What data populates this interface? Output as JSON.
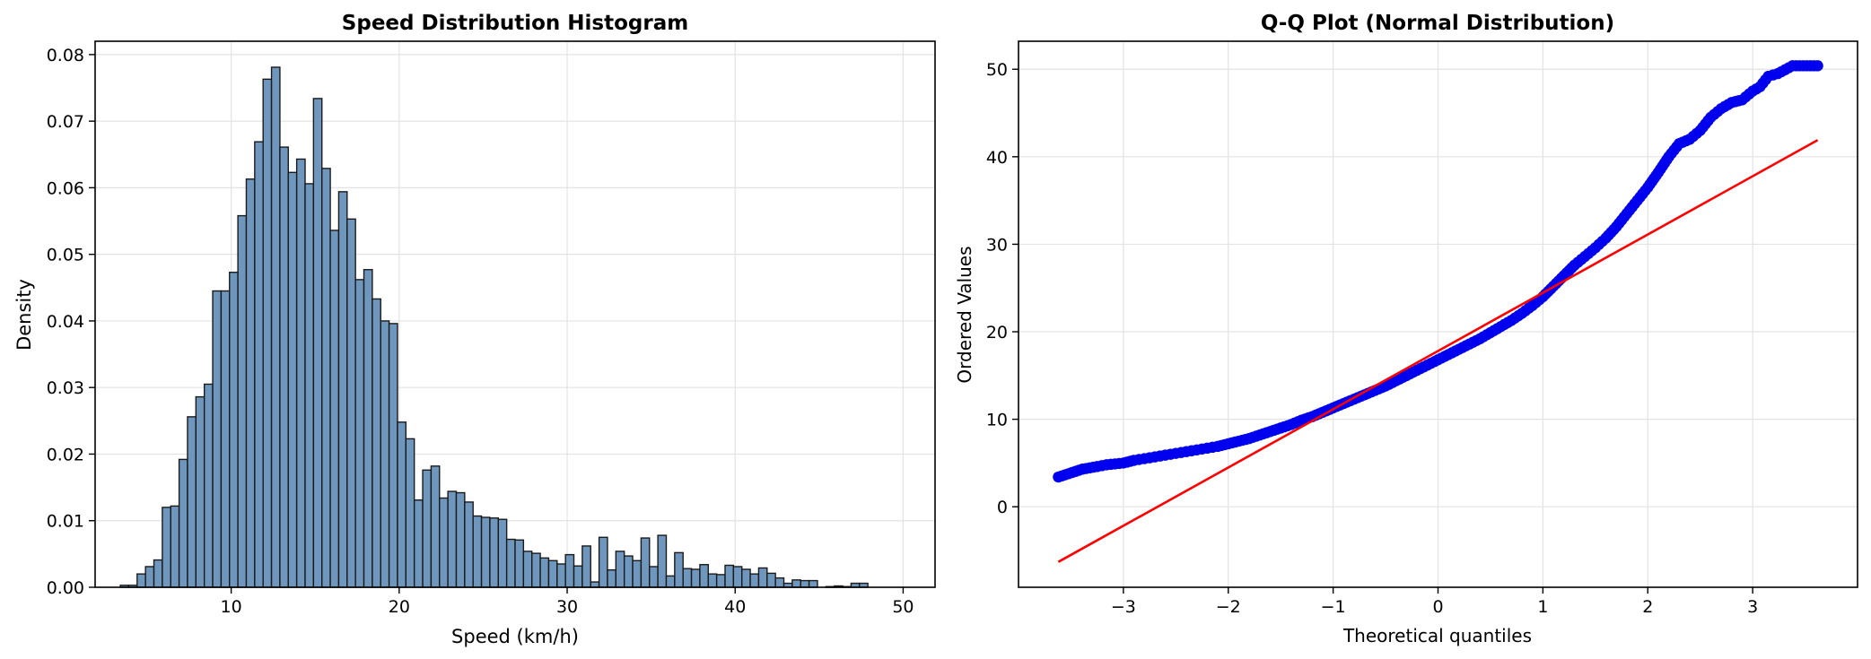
{
  "chart_data": [
    {
      "type": "bar",
      "title": "Speed Distribution Histogram",
      "xlabel": "Speed (km/h)",
      "ylabel": "Density",
      "xlim": [
        1.9,
        51.9
      ],
      "ylim": [
        0,
        0.082
      ],
      "xticks": [
        10,
        20,
        30,
        40,
        50
      ],
      "yticks": [
        0.0,
        0.01,
        0.02,
        0.03,
        0.04,
        0.05,
        0.06,
        0.07,
        0.08
      ],
      "ytick_labels": [
        "0.00",
        "0.01",
        "0.02",
        "0.03",
        "0.04",
        "0.05",
        "0.06",
        "0.07",
        "0.08"
      ],
      "grid": true,
      "bar_color": "#6f97bd",
      "edge_color": "#1a1a1a",
      "bin_start": 3.4,
      "bin_width": 0.5,
      "values": [
        0.0003,
        0.0003,
        0.002,
        0.0031,
        0.0041,
        0.012,
        0.0122,
        0.0192,
        0.0256,
        0.0286,
        0.0305,
        0.0445,
        0.0445,
        0.0473,
        0.0558,
        0.0613,
        0.0669,
        0.0763,
        0.0781,
        0.0661,
        0.0623,
        0.0643,
        0.0606,
        0.0734,
        0.0629,
        0.0536,
        0.0594,
        0.0553,
        0.0462,
        0.0477,
        0.0433,
        0.04,
        0.0396,
        0.0248,
        0.0223,
        0.0131,
        0.0176,
        0.0182,
        0.0134,
        0.0144,
        0.0142,
        0.0128,
        0.0107,
        0.0105,
        0.0104,
        0.0102,
        0.0072,
        0.0071,
        0.0054,
        0.0051,
        0.0044,
        0.004,
        0.0035,
        0.0049,
        0.0032,
        0.0062,
        0.0008,
        0.0075,
        0.0026,
        0.0054,
        0.0047,
        0.004,
        0.0074,
        0.0031,
        0.0078,
        0.0017,
        0.0052,
        0.0028,
        0.0027,
        0.0034,
        0.002,
        0.0019,
        0.0033,
        0.0031,
        0.0027,
        0.002,
        0.0029,
        0.0021,
        0.0014,
        0.0006,
        0.0011,
        0.001,
        0.001,
        0.0,
        0.0001,
        0.0002,
        0.0001,
        0.0006,
        0.0006
      ]
    },
    {
      "type": "scatter",
      "title": "Q-Q Plot (Normal Distribution)",
      "xlabel": "Theoretical quantiles",
      "ylabel": "Ordered Values",
      "xlim": [
        -4.0,
        4.0
      ],
      "ylim": [
        -9.2,
        53.2
      ],
      "xticks": [
        -3,
        -2,
        -1,
        0,
        1,
        2,
        3
      ],
      "xtick_labels": [
        "−3",
        "−2",
        "−1",
        "0",
        "1",
        "2",
        "3"
      ],
      "yticks": [
        0,
        10,
        20,
        30,
        40,
        50
      ],
      "grid": true,
      "point_color": "#0000ee",
      "line_color": "#ff0000",
      "points": [
        [
          -3.62,
          3.4
        ],
        [
          -3.39,
          4.3
        ],
        [
          -3.25,
          4.6
        ],
        [
          -3.16,
          4.8
        ],
        [
          -3.08,
          4.9
        ],
        [
          -3.0,
          5.0
        ],
        [
          -2.9,
          5.3
        ],
        [
          -2.8,
          5.5
        ],
        [
          -2.7,
          5.7
        ],
        [
          -2.6,
          5.9
        ],
        [
          -2.5,
          6.1
        ],
        [
          -2.4,
          6.3
        ],
        [
          -2.3,
          6.5
        ],
        [
          -2.2,
          6.7
        ],
        [
          -2.1,
          6.9
        ],
        [
          -2.0,
          7.2
        ],
        [
          -1.9,
          7.5
        ],
        [
          -1.8,
          7.8
        ],
        [
          -1.7,
          8.2
        ],
        [
          -1.6,
          8.6
        ],
        [
          -1.5,
          9.0
        ],
        [
          -1.4,
          9.4
        ],
        [
          -1.3,
          9.9
        ],
        [
          -1.2,
          10.3
        ],
        [
          -1.1,
          10.8
        ],
        [
          -1.0,
          11.3
        ],
        [
          -0.9,
          11.8
        ],
        [
          -0.8,
          12.3
        ],
        [
          -0.7,
          12.8
        ],
        [
          -0.6,
          13.3
        ],
        [
          -0.5,
          13.8
        ],
        [
          -0.4,
          14.4
        ],
        [
          -0.3,
          15.0
        ],
        [
          -0.2,
          15.6
        ],
        [
          -0.1,
          16.2
        ],
        [
          0.0,
          16.8
        ],
        [
          0.1,
          17.4
        ],
        [
          0.2,
          18.0
        ],
        [
          0.3,
          18.6
        ],
        [
          0.4,
          19.2
        ],
        [
          0.5,
          19.9
        ],
        [
          0.6,
          20.6
        ],
        [
          0.7,
          21.3
        ],
        [
          0.8,
          22.1
        ],
        [
          0.9,
          23.0
        ],
        [
          1.0,
          24.0
        ],
        [
          1.1,
          25.2
        ],
        [
          1.2,
          26.4
        ],
        [
          1.3,
          27.6
        ],
        [
          1.4,
          28.6
        ],
        [
          1.5,
          29.6
        ],
        [
          1.6,
          30.7
        ],
        [
          1.7,
          32.0
        ],
        [
          1.8,
          33.5
        ],
        [
          1.9,
          35.0
        ],
        [
          2.0,
          36.5
        ],
        [
          2.1,
          38.2
        ],
        [
          2.2,
          40.0
        ],
        [
          2.3,
          41.5
        ],
        [
          2.4,
          42.0
        ],
        [
          2.5,
          43.0
        ],
        [
          2.6,
          44.5
        ],
        [
          2.7,
          45.5
        ],
        [
          2.8,
          46.2
        ],
        [
          2.9,
          46.5
        ],
        [
          3.0,
          47.5
        ],
        [
          3.07,
          48.0
        ],
        [
          3.15,
          49.2
        ],
        [
          3.24,
          49.5
        ],
        [
          3.38,
          50.4
        ],
        [
          3.62,
          50.4
        ]
      ],
      "line": [
        [
          -3.62,
          -6.3
        ],
        [
          3.62,
          41.9
        ]
      ]
    }
  ]
}
